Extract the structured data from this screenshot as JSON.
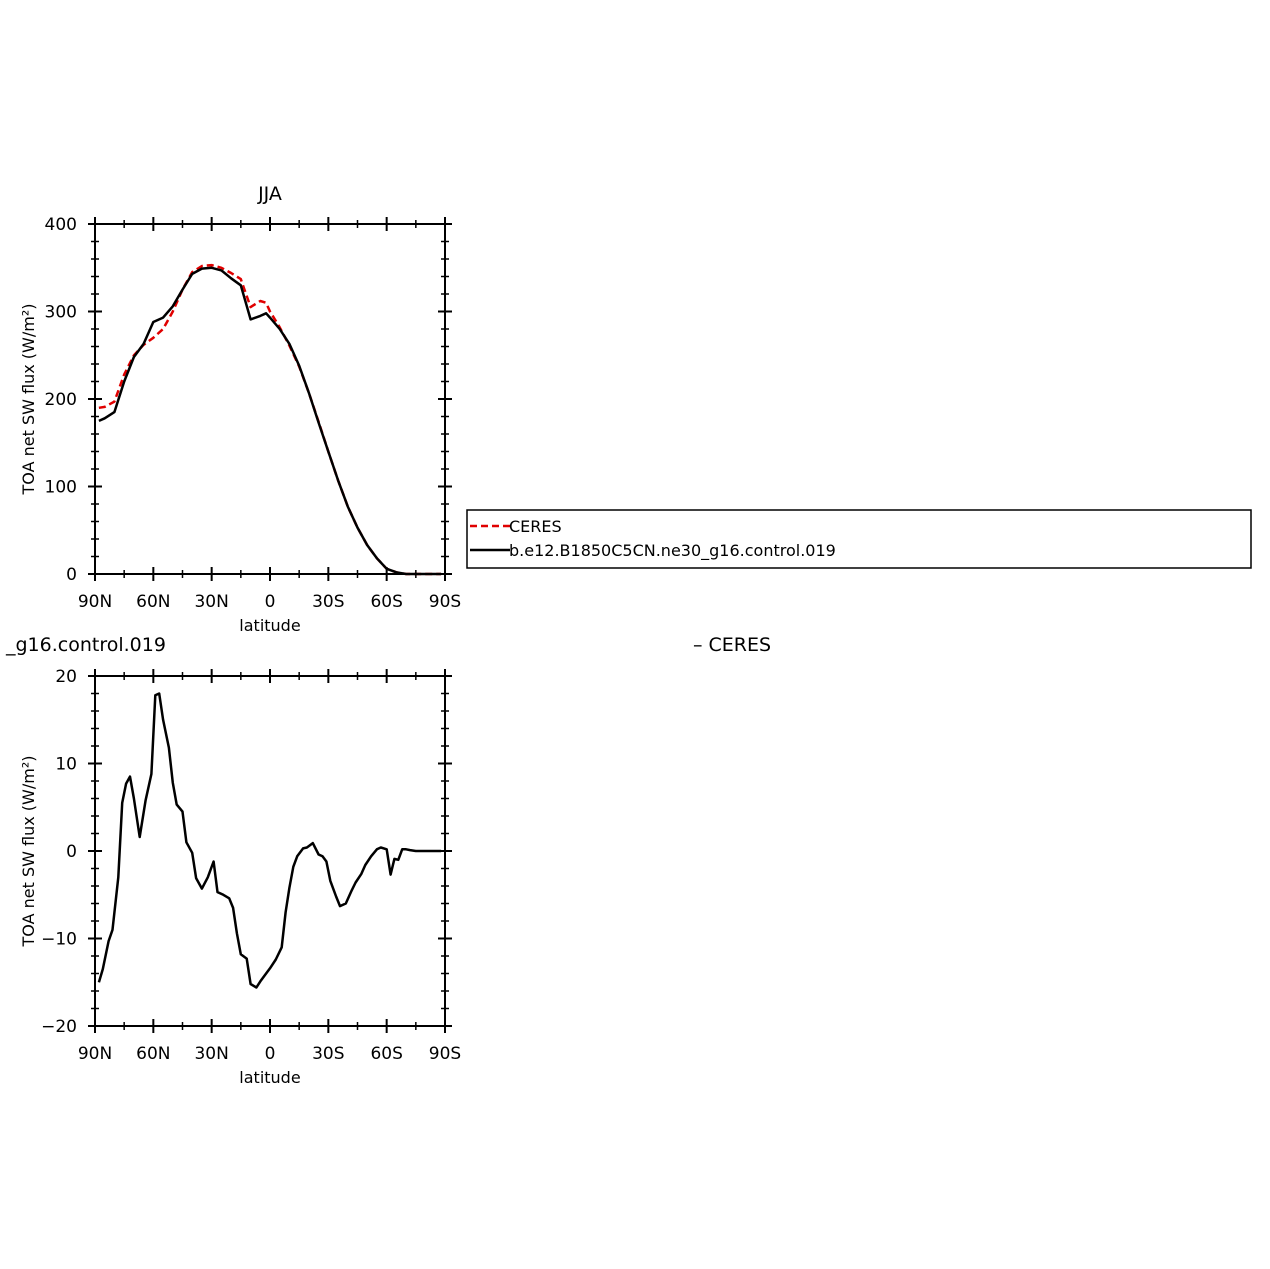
{
  "colors": {
    "ceres": "#e00000",
    "model": "#000000",
    "axis": "#000000"
  },
  "chart_data": [
    {
      "type": "line",
      "title": "JJA",
      "xlabel": "latitude",
      "ylabel": "TOA net SW flux (W/m²)",
      "xlim": [
        90,
        -90
      ],
      "ylim": [
        0,
        400
      ],
      "xticks": [
        90,
        60,
        30,
        0,
        -30,
        -60,
        -90
      ],
      "xtick_labels": [
        "90N",
        "60N",
        "30N",
        "0",
        "30S",
        "60S",
        "90S"
      ],
      "yticks": [
        0,
        100,
        200,
        300,
        400
      ],
      "ytick_labels": [
        "0",
        "100",
        "200",
        "300",
        "400"
      ],
      "legend": "right",
      "series": [
        {
          "name": "CERES",
          "style": "dashed",
          "color": "#e00000",
          "x": [
            88,
            85,
            80,
            75,
            70,
            65,
            60,
            55,
            50,
            45,
            40,
            35,
            30,
            25,
            20,
            15,
            10,
            5,
            2,
            0,
            -5,
            -10,
            -15,
            -20,
            -25,
            -30,
            -35,
            -40,
            -45,
            -50,
            -55,
            -60,
            -65,
            -70,
            -75,
            -80,
            -85,
            -88
          ],
          "y": [
            190,
            191,
            197,
            228,
            250,
            262,
            270,
            280,
            300,
            325,
            345,
            352,
            353,
            350,
            344,
            337,
            305,
            312,
            310,
            300,
            282,
            261,
            237,
            207,
            174,
            140,
            107,
            77,
            53,
            33,
            18,
            6,
            2,
            0,
            0,
            0,
            0,
            0
          ]
        },
        {
          "name": "b.e12.B1850C5CN.ne30_g16.control.019",
          "style": "solid",
          "color": "#000000",
          "x": [
            88,
            85,
            80,
            75,
            70,
            65,
            60,
            55,
            50,
            45,
            40,
            35,
            30,
            25,
            20,
            15,
            10,
            5,
            2,
            0,
            -5,
            -10,
            -15,
            -20,
            -25,
            -30,
            -35,
            -40,
            -45,
            -50,
            -55,
            -60,
            -65,
            -70,
            -75,
            -80,
            -85,
            -88
          ],
          "y": [
            175,
            178,
            185,
            220,
            248,
            263,
            288,
            293,
            306,
            325,
            343,
            349,
            350,
            347,
            338,
            330,
            291,
            295,
            298,
            293,
            280,
            263,
            238,
            207,
            173,
            140,
            107,
            77,
            53,
            33,
            18,
            6,
            2,
            0,
            0,
            0,
            0,
            0
          ]
        }
      ]
    },
    {
      "type": "line",
      "title": "_g16.control.019",
      "title_right": "– CERES",
      "xlabel": "latitude",
      "ylabel": "TOA net SW flux (W/m²)",
      "xlim": [
        90,
        -90
      ],
      "ylim": [
        -20,
        20
      ],
      "xticks": [
        90,
        60,
        30,
        0,
        -30,
        -60,
        -90
      ],
      "xtick_labels": [
        "90N",
        "60N",
        "30N",
        "0",
        "30S",
        "60S",
        "90S"
      ],
      "yticks": [
        -20,
        -10,
        0,
        10,
        20
      ],
      "ytick_labels": [
        "−20",
        "−10",
        "0",
        "10",
        "20"
      ],
      "series": [
        {
          "style": "solid",
          "color": "#000000",
          "x": [
            88,
            86,
            83,
            81,
            78,
            76,
            74,
            72,
            70,
            67,
            64,
            61,
            59,
            57,
            55,
            52,
            50,
            48,
            45,
            43,
            40,
            38,
            35,
            32,
            29,
            27,
            24,
            21,
            19,
            17,
            15,
            12,
            10,
            7,
            5,
            2,
            0,
            -3,
            -6,
            -8,
            -10,
            -12,
            -14,
            -17,
            -19,
            -22,
            -25,
            -27,
            -29,
            -31,
            -34,
            -36,
            -39,
            -42,
            -44,
            -47,
            -49,
            -52,
            -55,
            -57,
            -60,
            -62,
            -64,
            -66,
            -68,
            -70,
            -72,
            -75,
            -78,
            -81,
            -84,
            -86,
            -88
          ],
          "y": [
            -15,
            -13.5,
            -10.3,
            -9,
            -3,
            5.5,
            7.7,
            8.5,
            6,
            1.6,
            5.8,
            8.8,
            17.8,
            18,
            15,
            11.8,
            7.8,
            5.3,
            4.5,
            1,
            -0.2,
            -3.1,
            -4.3,
            -3,
            -1.2,
            -4.7,
            -5,
            -5.4,
            -6.5,
            -9.4,
            -11.8,
            -12.3,
            -15.2,
            -15.6,
            -14.9,
            -14,
            -13.4,
            -12.4,
            -11,
            -7,
            -4.2,
            -1.8,
            -0.6,
            0.3,
            0.4,
            0.9,
            -0.4,
            -0.6,
            -1.2,
            -3.4,
            -5.2,
            -6.3,
            -6,
            -4.5,
            -3.6,
            -2.6,
            -1.6,
            -0.6,
            0.2,
            0.4,
            0.2,
            -2.7,
            -0.9,
            -1,
            0.2,
            0.2,
            0.1,
            0,
            0,
            0,
            0,
            0,
            0
          ]
        }
      ]
    }
  ]
}
